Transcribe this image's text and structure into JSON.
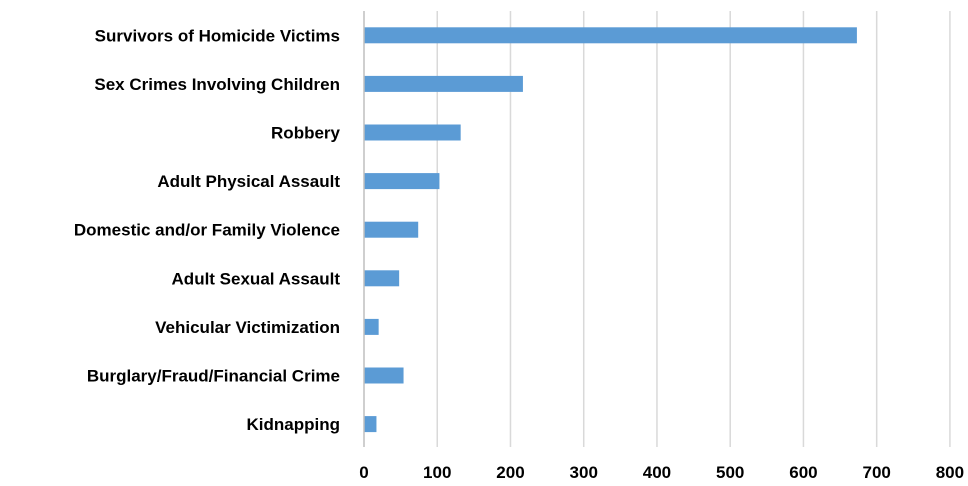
{
  "chart_data": {
    "type": "bar",
    "orientation": "horizontal",
    "title": "",
    "xlabel": "",
    "ylabel": "",
    "categories": [
      "Survivors of Homicide Victims",
      "Sex Crimes Involving Children",
      "Robbery",
      "Adult Physical Assault",
      "Domestic and/or Family Violence",
      "Adult Sexual Assault",
      "Vehicular Victimization",
      "Burglary/Fraud/Financial Crime",
      "Kidnapping"
    ],
    "values": [
      673,
      217,
      132,
      103,
      74,
      48,
      20,
      54,
      17
    ],
    "xlim": [
      0,
      800
    ],
    "xticks": [
      0,
      100,
      200,
      300,
      400,
      500,
      600,
      700,
      800
    ],
    "grid": "vertical",
    "legend": "none",
    "colors": {
      "bar": "#5b9bd5",
      "grid": "#d9d9d9",
      "axis": "#bfbfbf",
      "text": "#000000"
    }
  }
}
